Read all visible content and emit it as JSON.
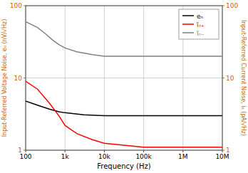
{
  "chart_data": {
    "type": "line",
    "log": true,
    "grid": true,
    "legend": "upper right",
    "x_label": "Frequency (Hz)",
    "y_label": "Input-Referred Voltage Noise, eₙ (nV/√Hz)",
    "y2_label": "Input-Referred Current Noise, iₙ (pA/√Hz)",
    "xlim": [
      100,
      10000000
    ],
    "ylim": [
      1,
      100
    ],
    "y2lim": [
      1,
      100
    ],
    "xticks": [
      100,
      {
        "value": 1000,
        "label": "1k"
      },
      {
        "value": 10000,
        "label": "10k"
      },
      {
        "value": 100000,
        "label": "100k"
      },
      {
        "value": 1000000,
        "label": "1M"
      },
      {
        "value": 10000000,
        "label": "10M"
      }
    ],
    "yticks": [
      1,
      10,
      100
    ],
    "y2ticks": [
      1,
      10,
      100
    ],
    "series": [
      {
        "name": "eₙ",
        "color": "black",
        "x": [
          100,
          200,
          400,
          700,
          1000,
          3000,
          10000,
          100000,
          1000000,
          10000000
        ],
        "values": [
          4.8,
          4.2,
          3.7,
          3.4,
          3.3,
          3.1,
          3.0,
          3.0,
          3.0,
          3.0
        ]
      },
      {
        "name": "ĩₙ₊",
        "color": "red",
        "axis": "y2",
        "x": [
          100,
          200,
          400,
          700,
          1000,
          2000,
          5000,
          10000,
          100000,
          1000000,
          10000000
        ],
        "values": [
          9.0,
          7.0,
          4.5,
          3.0,
          2.2,
          1.7,
          1.4,
          1.25,
          1.1,
          1.1,
          1.1
        ]
      },
      {
        "name": "ĩₙ₋",
        "color": "gray",
        "axis": "y2",
        "x": [
          100,
          200,
          300,
          500,
          700,
          1000,
          2000,
          5000,
          10000,
          100000,
          1000000,
          10000000
        ],
        "values": [
          60,
          50,
          42,
          33,
          29,
          26,
          23,
          21,
          20,
          20,
          20,
          20
        ]
      }
    ]
  }
}
